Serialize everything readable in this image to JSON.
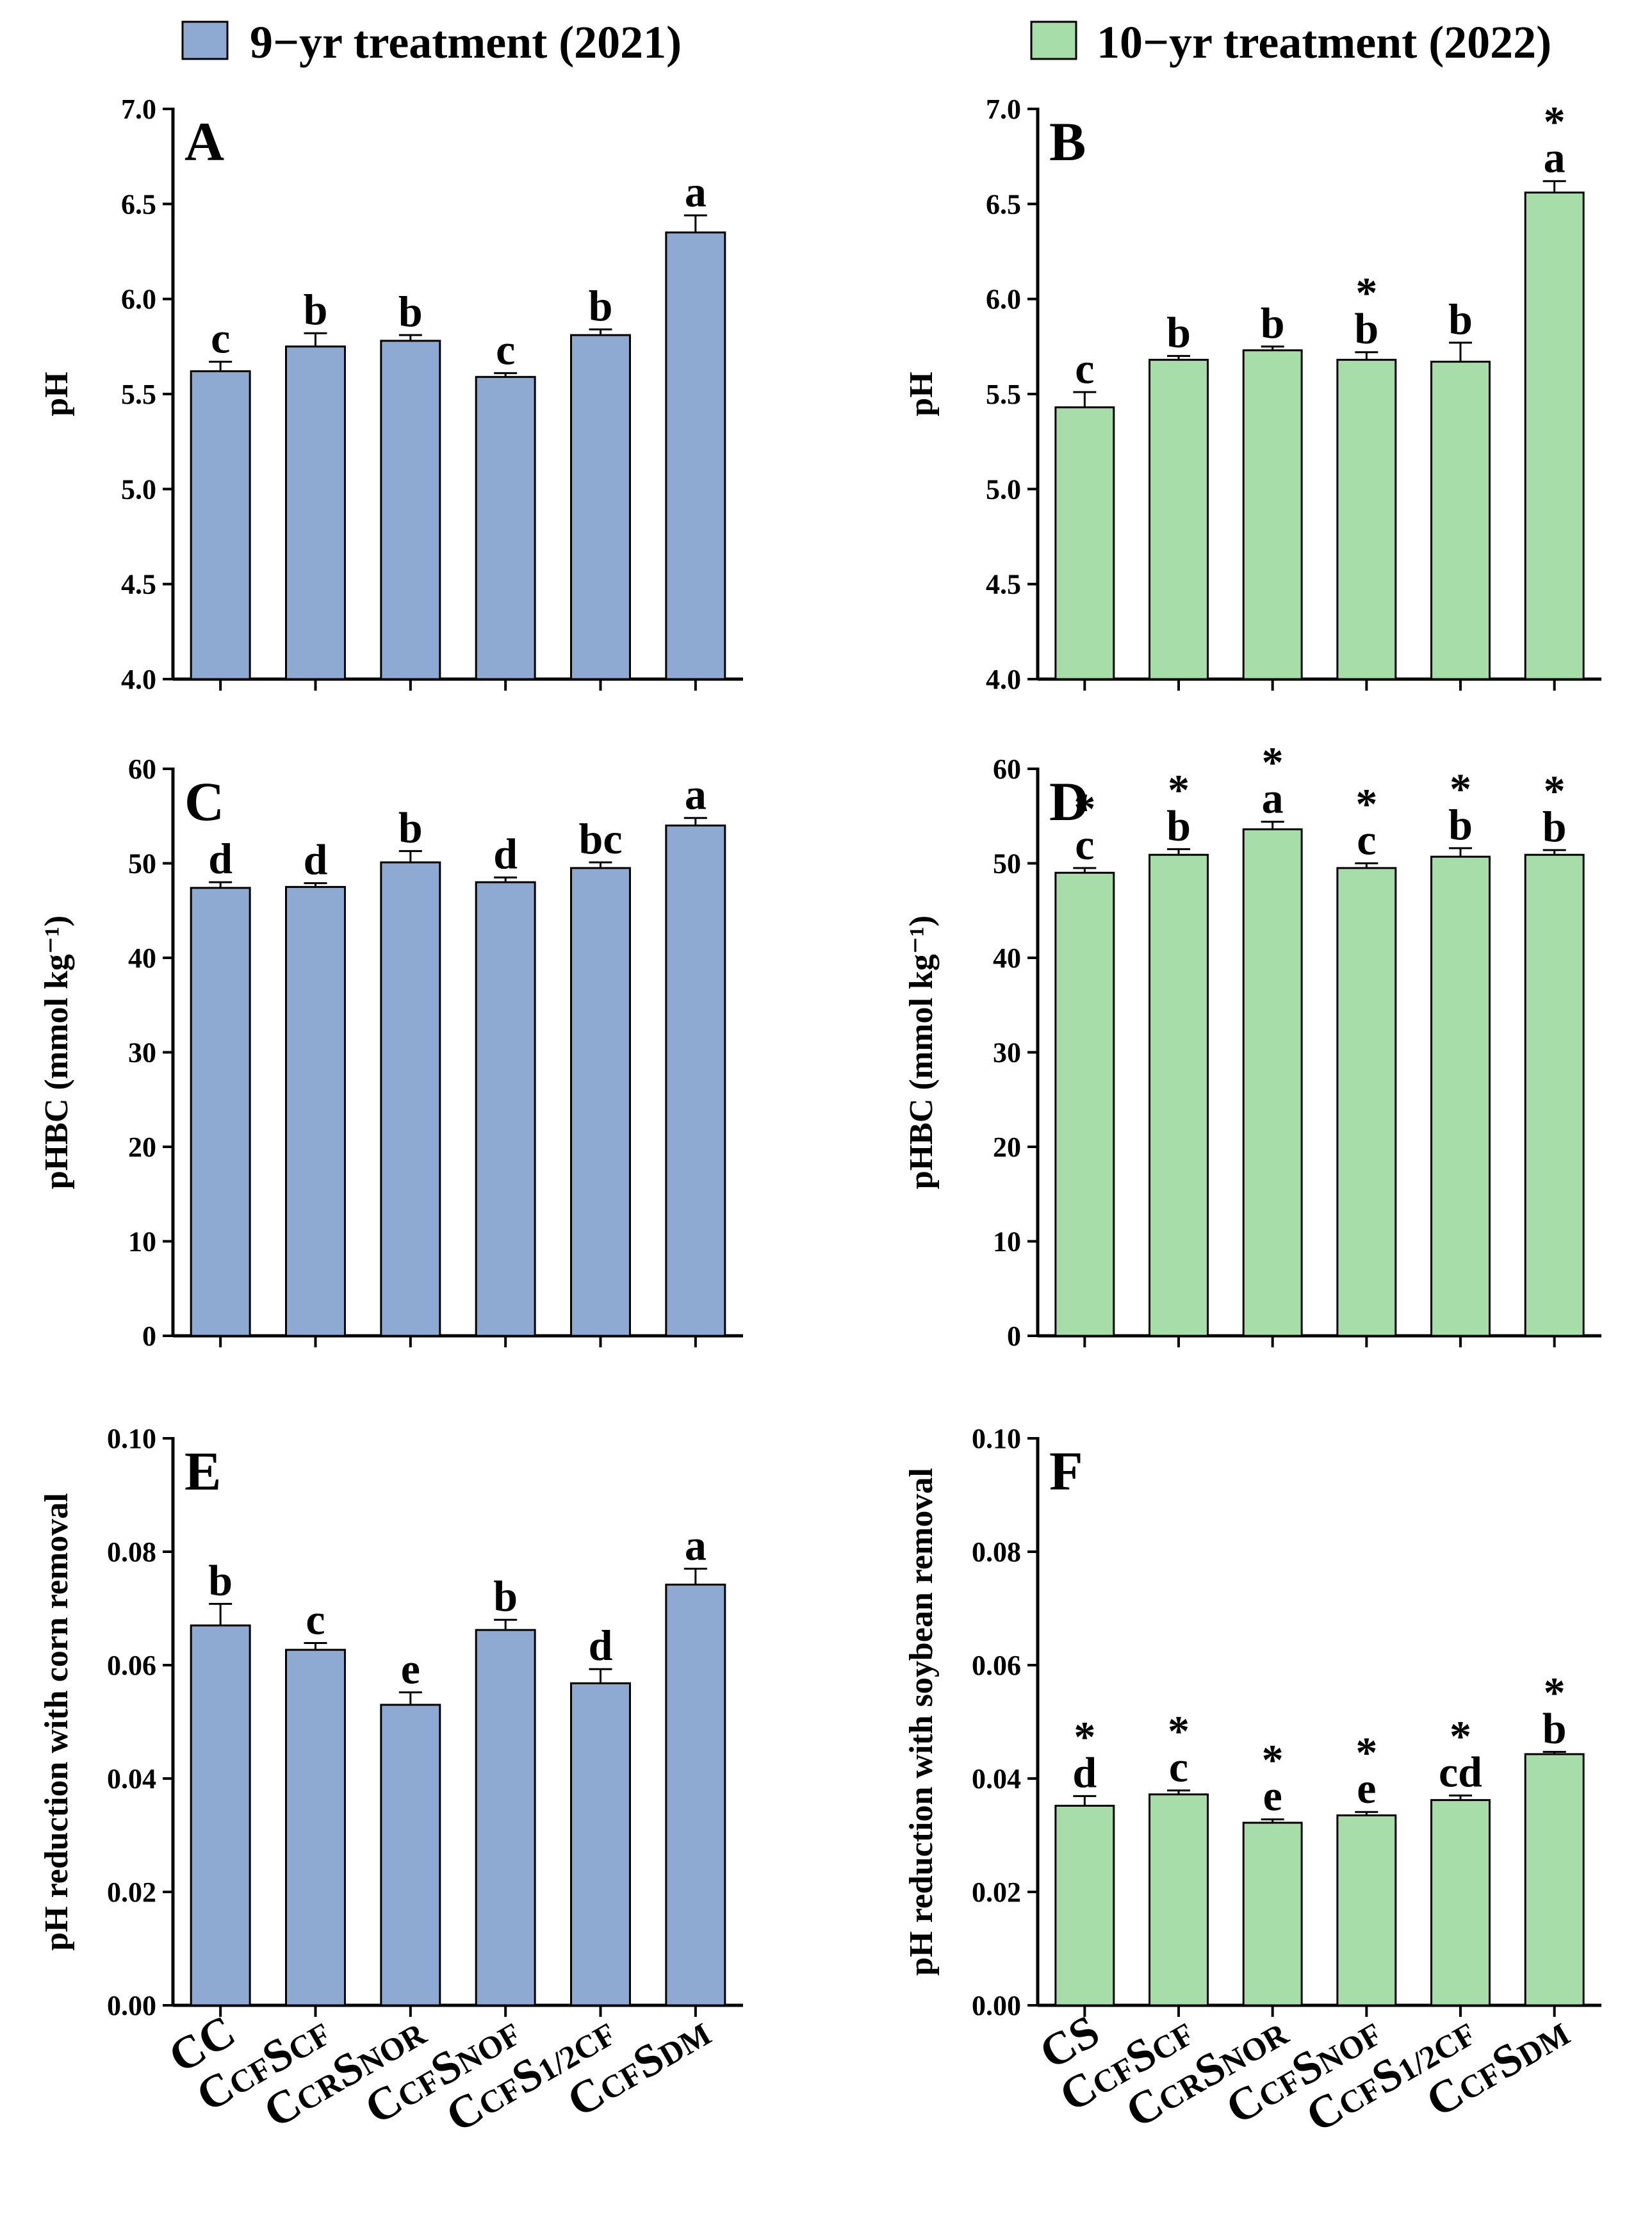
{
  "legend": [
    {
      "label": "9−yr treatment (2021)",
      "color": "#8EA9D2"
    },
    {
      "label": "10−yr treatment (2022)",
      "color": "#A7DDA8"
    }
  ],
  "chart_data": [
    {
      "panel": "A",
      "type": "bar",
      "series_name": "9−yr treatment (2021)",
      "color": "#8EA9D2",
      "ylabel": "pH",
      "ylim": [
        4.0,
        7.0
      ],
      "yticks": [
        "4.0",
        "4.5",
        "5.0",
        "5.5",
        "6.0",
        "6.5",
        "7.0"
      ],
      "categories": [
        [
          "CC"
        ],
        [
          "C",
          "CF",
          "S",
          "CF"
        ],
        [
          "C",
          "CR",
          "S",
          "NOR"
        ],
        [
          "C",
          "CF",
          "S",
          "NOF"
        ],
        [
          "C",
          "CF",
          "S",
          "1/2CF"
        ],
        [
          "C",
          "CF",
          "S",
          "DM"
        ]
      ],
      "values": [
        5.62,
        5.75,
        5.78,
        5.59,
        5.81,
        6.35
      ],
      "errors": [
        0.05,
        0.07,
        0.03,
        0.02,
        0.03,
        0.09
      ],
      "letters": [
        "c",
        "b",
        "b",
        "c",
        "b",
        "a"
      ],
      "stars": [
        "",
        "",
        "",
        "",
        "",
        ""
      ]
    },
    {
      "panel": "B",
      "type": "bar",
      "series_name": "10−yr treatment (2022)",
      "color": "#A7DDA8",
      "ylabel": "pH",
      "ylim": [
        4.0,
        7.0
      ],
      "yticks": [
        "4.0",
        "4.5",
        "5.0",
        "5.5",
        "6.0",
        "6.5",
        "7.0"
      ],
      "categories": [
        [
          "CS"
        ],
        [
          "C",
          "CF",
          "S",
          "CF"
        ],
        [
          "C",
          "CR",
          "S",
          "NOR"
        ],
        [
          "C",
          "CF",
          "S",
          "NOF"
        ],
        [
          "C",
          "CF",
          "S",
          "1/2CF"
        ],
        [
          "C",
          "CF",
          "S",
          "DM"
        ]
      ],
      "values": [
        5.43,
        5.68,
        5.73,
        5.68,
        5.67,
        6.56
      ],
      "errors": [
        0.08,
        0.02,
        0.02,
        0.04,
        0.1,
        0.06
      ],
      "letters": [
        "c",
        "b",
        "b",
        "b",
        "b",
        "a"
      ],
      "stars": [
        "",
        "",
        "",
        "*",
        "",
        "*"
      ]
    },
    {
      "panel": "C",
      "type": "bar",
      "series_name": "9−yr treatment (2021)",
      "color": "#8EA9D2",
      "ylabel": "pHBC (mmol kg⁻¹)",
      "ylim": [
        0,
        60
      ],
      "yticks": [
        "0",
        "10",
        "20",
        "30",
        "40",
        "50",
        "60"
      ],
      "categories": [
        [
          "CC"
        ],
        [
          "C",
          "CF",
          "S",
          "CF"
        ],
        [
          "C",
          "CR",
          "S",
          "NOR"
        ],
        [
          "C",
          "CF",
          "S",
          "NOF"
        ],
        [
          "C",
          "CF",
          "S",
          "1/2CF"
        ],
        [
          "C",
          "CF",
          "S",
          "DM"
        ]
      ],
      "values": [
        47.4,
        47.5,
        50.1,
        48.0,
        49.5,
        54.0
      ],
      "errors": [
        0.6,
        0.4,
        1.2,
        0.5,
        0.6,
        0.8
      ],
      "letters": [
        "d",
        "d",
        "b",
        "d",
        "bc",
        "a"
      ],
      "stars": [
        "",
        "",
        "",
        "",
        "",
        ""
      ]
    },
    {
      "panel": "D",
      "type": "bar",
      "series_name": "10−yr treatment (2022)",
      "color": "#A7DDA8",
      "ylabel": "pHBC (mmol kg⁻¹)",
      "ylim": [
        0,
        60
      ],
      "yticks": [
        "0",
        "10",
        "20",
        "30",
        "40",
        "50",
        "60"
      ],
      "categories": [
        [
          "CS"
        ],
        [
          "C",
          "CF",
          "S",
          "CF"
        ],
        [
          "C",
          "CR",
          "S",
          "NOR"
        ],
        [
          "C",
          "CF",
          "S",
          "NOF"
        ],
        [
          "C",
          "CF",
          "S",
          "1/2CF"
        ],
        [
          "C",
          "CF",
          "S",
          "DM"
        ]
      ],
      "values": [
        49.0,
        50.9,
        53.6,
        49.5,
        50.7,
        50.9
      ],
      "errors": [
        0.5,
        0.6,
        0.8,
        0.5,
        0.9,
        0.5
      ],
      "letters": [
        "c",
        "b",
        "a",
        "c",
        "b",
        "b"
      ],
      "stars": [
        "*",
        "*",
        "*",
        "*",
        "*",
        "*"
      ]
    },
    {
      "panel": "E",
      "type": "bar",
      "series_name": "9−yr treatment (2021)",
      "color": "#8EA9D2",
      "ylabel": "pH reduction with corn removal",
      "ylim": [
        0,
        0.1
      ],
      "yticks": [
        "0.00",
        "0.02",
        "0.04",
        "0.06",
        "0.08",
        "0.10"
      ],
      "categories": [
        [
          "CC"
        ],
        [
          "C",
          "CF",
          "S",
          "CF"
        ],
        [
          "C",
          "CR",
          "S",
          "NOR"
        ],
        [
          "C",
          "CF",
          "S",
          "NOF"
        ],
        [
          "C",
          "CF",
          "S",
          "1/2CF"
        ],
        [
          "C",
          "CF",
          "S",
          "DM"
        ]
      ],
      "values": [
        0.067,
        0.0627,
        0.053,
        0.0662,
        0.0568,
        0.0742
      ],
      "errors": [
        0.0038,
        0.0012,
        0.0022,
        0.0018,
        0.0025,
        0.0028
      ],
      "letters": [
        "b",
        "c",
        "e",
        "b",
        "d",
        "a"
      ],
      "stars": [
        "",
        "",
        "",
        "",
        "",
        ""
      ]
    },
    {
      "panel": "F",
      "type": "bar",
      "series_name": "10−yr treatment (2022)",
      "color": "#A7DDA8",
      "ylabel": "pH reduction with soybean removal",
      "ylim": [
        0,
        0.1
      ],
      "yticks": [
        "0.00",
        "0.02",
        "0.04",
        "0.06",
        "0.08",
        "0.10"
      ],
      "categories": [
        [
          "CS"
        ],
        [
          "C",
          "CF",
          "S",
          "CF"
        ],
        [
          "C",
          "CR",
          "S",
          "NOR"
        ],
        [
          "C",
          "CF",
          "S",
          "NOF"
        ],
        [
          "C",
          "CF",
          "S",
          "1/2CF"
        ],
        [
          "C",
          "CF",
          "S",
          "DM"
        ]
      ],
      "values": [
        0.0352,
        0.0372,
        0.0322,
        0.0335,
        0.0362,
        0.0443
      ],
      "errors": [
        0.0017,
        0.0007,
        0.0006,
        0.0006,
        0.0008,
        0.0004
      ],
      "letters": [
        "d",
        "c",
        "e",
        "e",
        "cd",
        "b"
      ],
      "stars": [
        "*",
        "*",
        "*",
        "*",
        "*",
        "*"
      ]
    }
  ]
}
